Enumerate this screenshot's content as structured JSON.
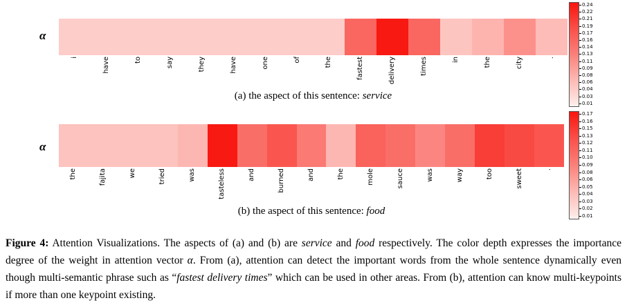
{
  "panels": {
    "a": {
      "ylabel": "α",
      "caption_prefix": "(a) the aspect of this sentence: ",
      "aspect": "service"
    },
    "b": {
      "ylabel": "α",
      "caption_prefix": "(b) the aspect of this sentence: ",
      "aspect": "food"
    }
  },
  "figure_caption": {
    "label": "Figure 4:",
    "s1": " Attention Visualizations.  The aspects of (a) and (b) are ",
    "aspect_a": "service",
    "s2": " and ",
    "aspect_b": "food",
    "s3": " respectively.  The color depth expresses the importance degree of the weight in attention vector ",
    "alpha": "α",
    "s4": ". From (a), attention can detect the important words from the whole sentence dynamically even though multi-semantic phrase such as “",
    "phrase": "fastest delivery times",
    "s5": "” which can be used in other areas.  From (b), attention can know multi-keypoints if more than one keypoint existing."
  },
  "chart_data": [
    {
      "type": "heatmap",
      "title": "(a) the aspect of this sentence: service",
      "aspect": "service",
      "ylabel": "α",
      "x": [
        "i",
        "have",
        "to",
        "say",
        "they",
        "have",
        "one",
        "of",
        "the",
        "fastest",
        "delivery",
        "times",
        "in",
        "the",
        "city",
        "."
      ],
      "y": [
        "α"
      ],
      "values": [
        [
          0.03,
          0.03,
          0.03,
          0.03,
          0.03,
          0.03,
          0.03,
          0.03,
          0.03,
          0.15,
          0.24,
          0.15,
          0.04,
          0.06,
          0.1,
          0.05
        ]
      ],
      "vmin": 0.01,
      "vmax": 0.24,
      "colormap": "Reds",
      "legend": "colorbar-right",
      "colorbar_ticks": [
        "0.24",
        "0.22",
        "0.21",
        "0.19",
        "0.17",
        "0.16",
        "0.14",
        "0.13",
        "0.11",
        "0.09",
        "0.08",
        "0.06",
        "0.04",
        "0.03",
        "0.01"
      ]
    },
    {
      "type": "heatmap",
      "title": "(b) the aspect of this sentence: food",
      "aspect": "food",
      "ylabel": "α",
      "x": [
        "the",
        "fajita",
        "we",
        "tried",
        "was",
        "tasteless",
        "and",
        "burned",
        "and",
        "the",
        "mole",
        "sauce",
        "was",
        "way",
        "too",
        "sweet",
        "."
      ],
      "y": [
        "α"
      ],
      "values": [
        [
          0.03,
          0.03,
          0.03,
          0.03,
          0.04,
          0.17,
          0.1,
          0.12,
          0.09,
          0.04,
          0.11,
          0.1,
          0.08,
          0.1,
          0.14,
          0.13,
          0.12
        ]
      ],
      "vmin": 0.01,
      "vmax": 0.17,
      "colormap": "Reds",
      "legend": "colorbar-right",
      "colorbar_ticks": [
        "0.17",
        "0.16",
        "0.15",
        "0.13",
        "0.12",
        "0.11",
        "0.10",
        "0.09",
        "0.08",
        "0.06",
        "0.05",
        "0.04",
        "0.03",
        "0.02",
        "0.01"
      ]
    }
  ]
}
